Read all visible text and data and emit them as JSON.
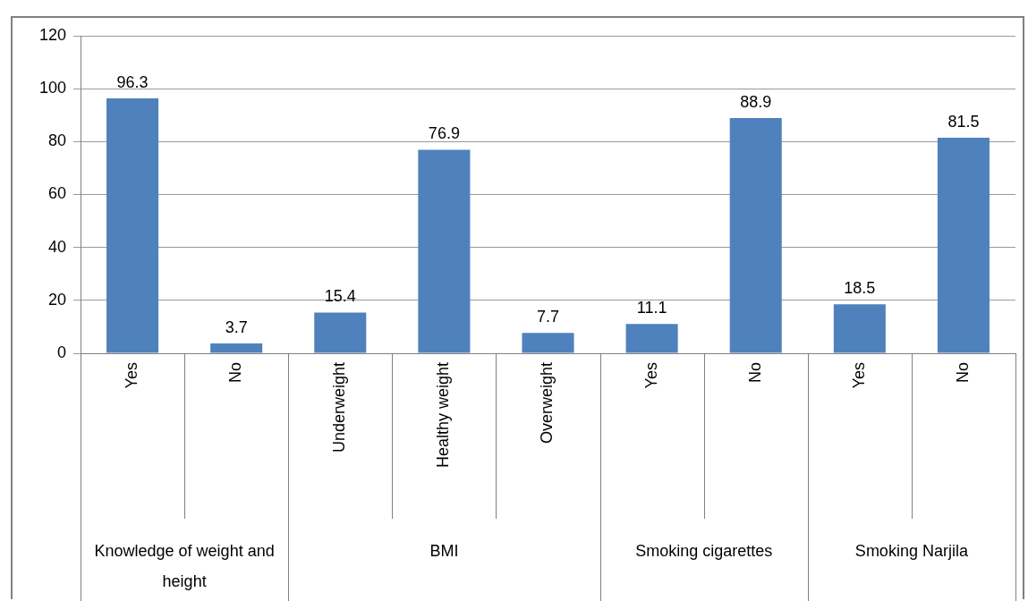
{
  "chart_data": {
    "type": "bar",
    "categories": [
      "Yes",
      "No",
      "Underweight",
      "Healthy weight",
      "Overweight",
      "Yes",
      "No",
      "Yes",
      "No"
    ],
    "values": [
      96.3,
      3.7,
      15.4,
      76.9,
      7.7,
      11.1,
      88.9,
      18.5,
      81.5
    ],
    "color": "#4f81bd",
    "ylim": [
      0,
      120
    ],
    "yticks": [
      0,
      20,
      40,
      60,
      80,
      100,
      120
    ],
    "grid": "y",
    "data_labels": true,
    "annotations": [
      "Knowledge of weight and height",
      "BMI",
      "Smoking cigarettes",
      "Smoking Narjila"
    ]
  }
}
